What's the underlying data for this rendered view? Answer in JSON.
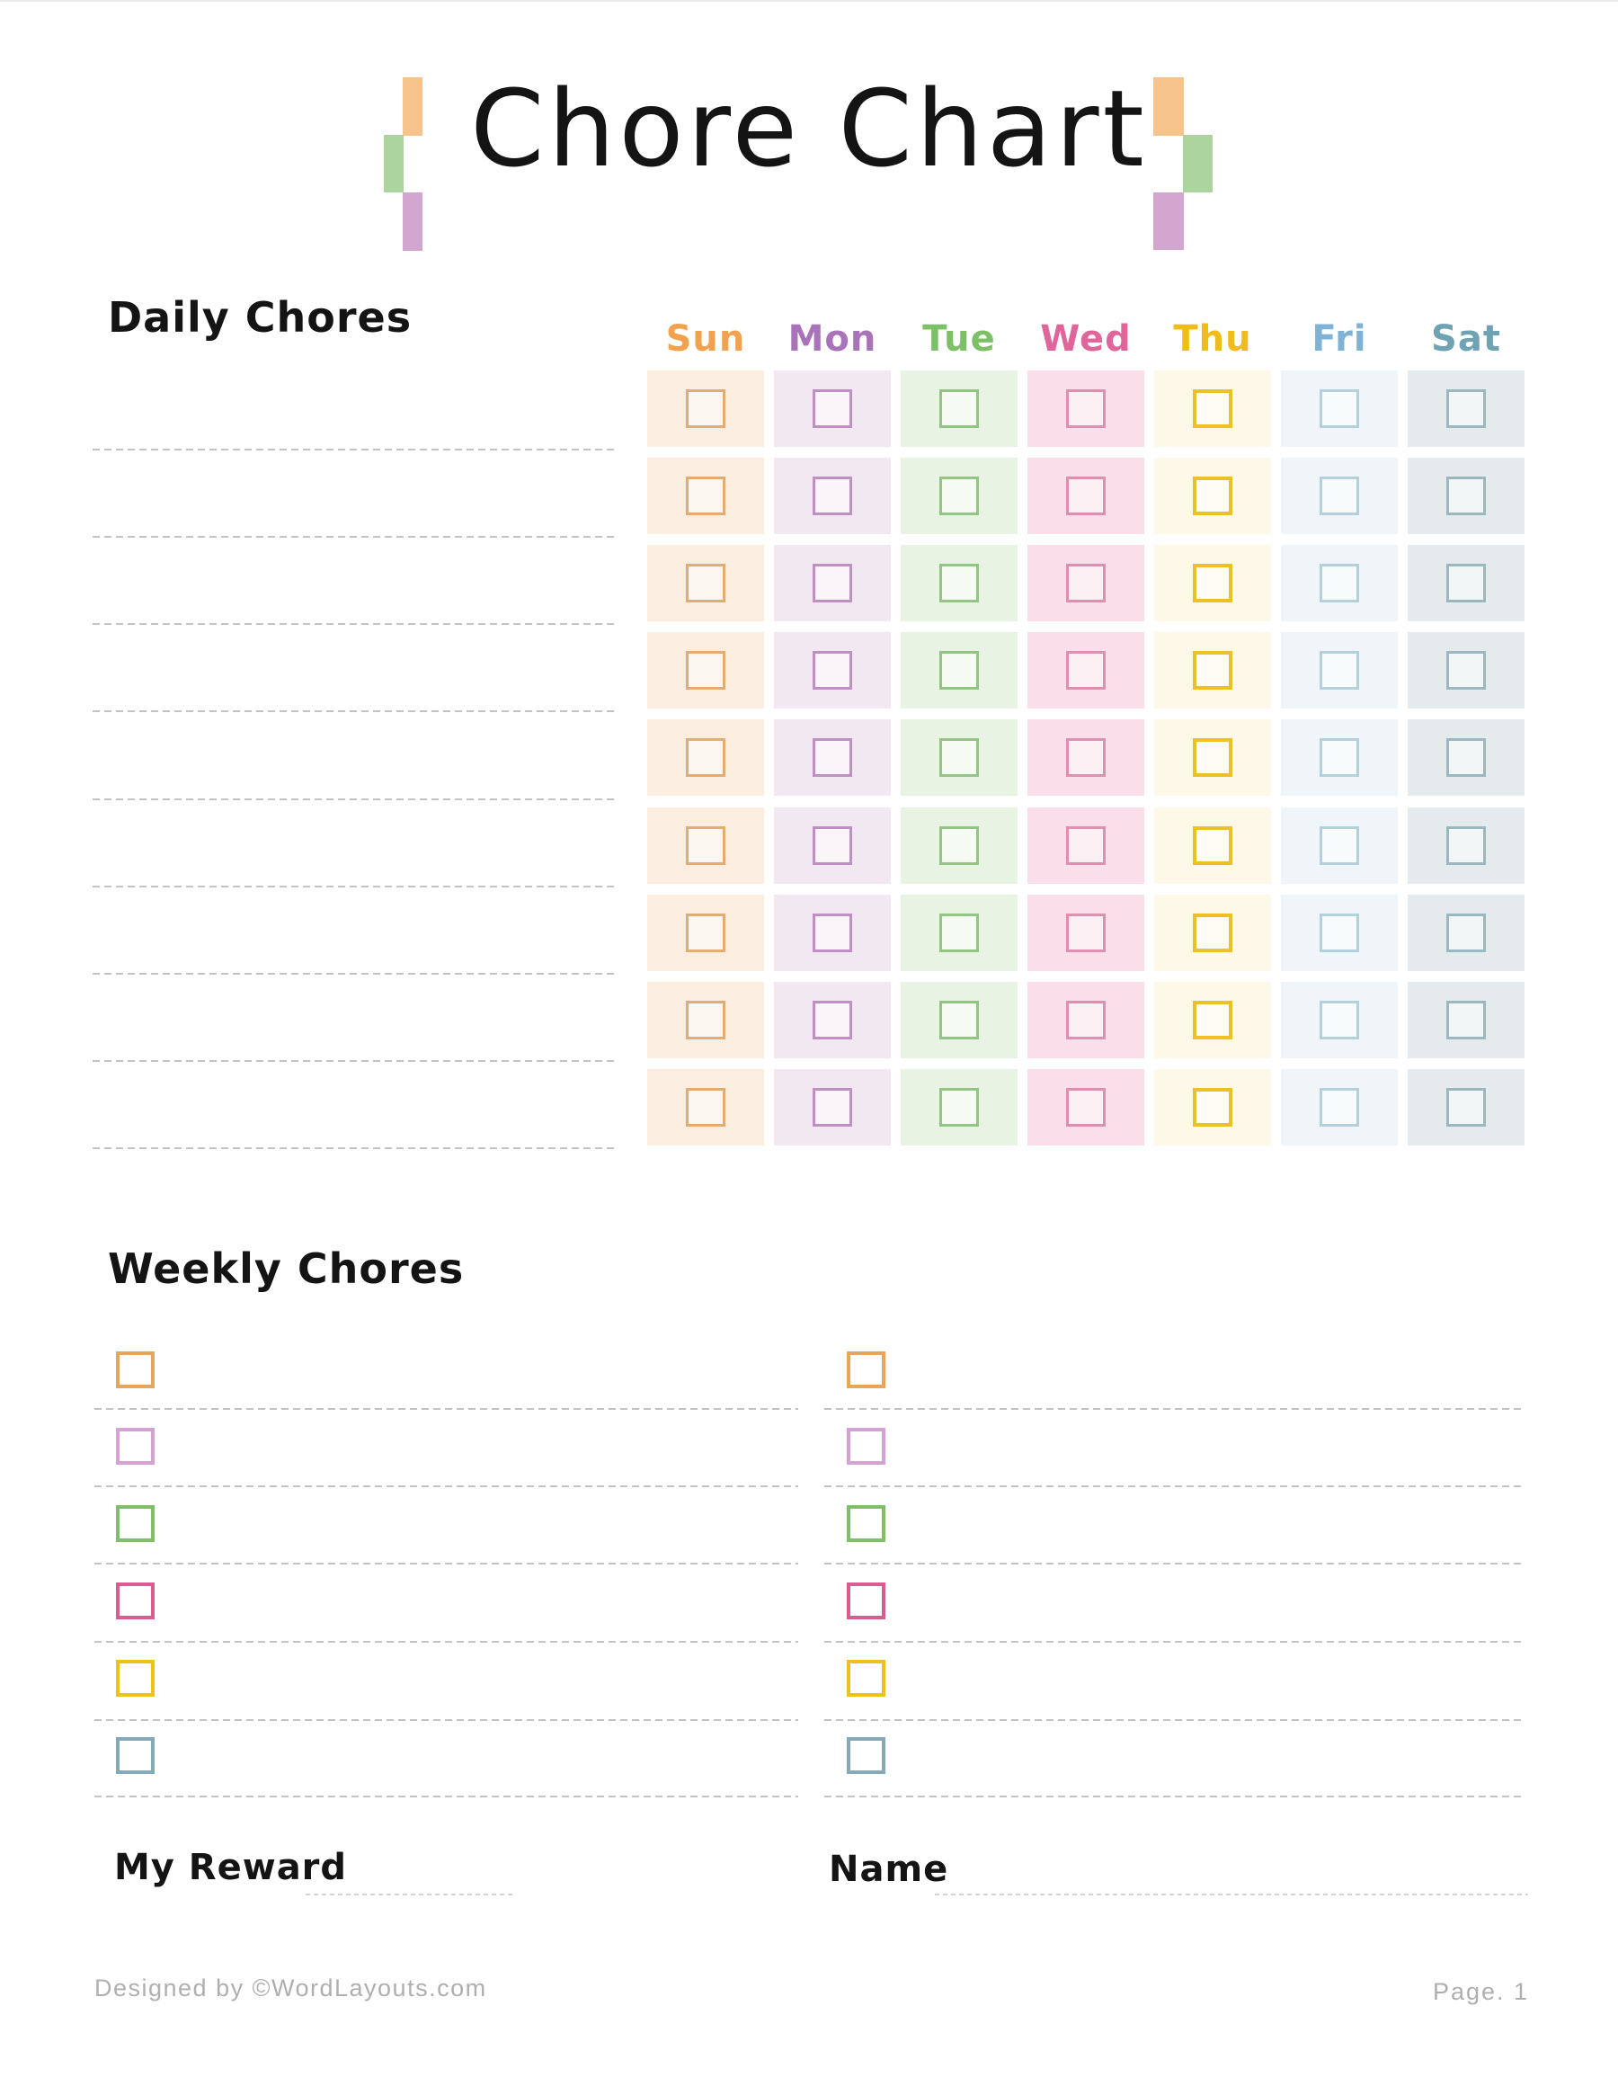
{
  "title": "Chore Chart",
  "decoration": {
    "orange": "#F6C38D",
    "green": "#ABD49E",
    "purple": "#D2A6CE"
  },
  "daily": {
    "heading": "Daily Chores",
    "row_count": 9,
    "days": [
      {
        "label": "Sun",
        "label_color": "#F2A24E",
        "cell_bg": "#FBEEE1",
        "box_border": "#E2AC72",
        "box_border_width": 3
      },
      {
        "label": "Mon",
        "label_color": "#A873B8",
        "cell_bg": "#F2E8F2",
        "box_border": "#C08FC4",
        "box_border_width": 3
      },
      {
        "label": "Tue",
        "label_color": "#7CC167",
        "cell_bg": "#E9F3E4",
        "box_border": "#92C584",
        "box_border_width": 3
      },
      {
        "label": "Wed",
        "label_color": "#E0659B",
        "cell_bg": "#FADEE9",
        "box_border": "#DE90B1",
        "box_border_width": 3
      },
      {
        "label": "Thu",
        "label_color": "#F0BC18",
        "cell_bg": "#FDF8E8",
        "box_border": "#EDC125",
        "box_border_width": 4
      },
      {
        "label": "Fri",
        "label_color": "#7FB3D5",
        "cell_bg": "#EFF5F8",
        "box_border": "#B3D0DB",
        "box_border_width": 3
      },
      {
        "label": "Sat",
        "label_color": "#6FA3B3",
        "cell_bg": "#E5EBEC",
        "box_border": "#9BB8C1",
        "box_border_width": 3
      }
    ]
  },
  "weekly": {
    "heading": "Weekly Chores",
    "column_count": 2,
    "rows_per_column": 6,
    "box_colors": [
      "#E8A55C",
      "#D5A3D3",
      "#82BE6A",
      "#DB5C90",
      "#EDC31B",
      "#85A9B6"
    ]
  },
  "fields": {
    "reward_label": "My Reward",
    "name_label": "Name"
  },
  "footer": {
    "credit": "Designed by ©WordLayouts.com",
    "page_number": "Page. 1"
  }
}
